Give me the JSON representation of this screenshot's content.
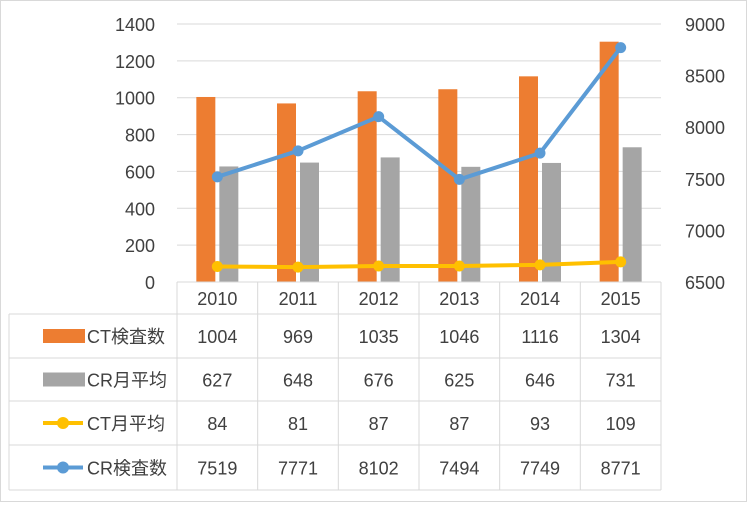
{
  "chart_data": {
    "type": "bar",
    "categories": [
      "2010",
      "2011",
      "2012",
      "2013",
      "2014",
      "2015"
    ],
    "left_axis": {
      "min": 0,
      "max": 1400,
      "step": 200,
      "ticks": [
        "0",
        "200",
        "400",
        "600",
        "800",
        "1000",
        "1200",
        "1400"
      ]
    },
    "right_axis": {
      "min": 6500,
      "max": 9000,
      "step": 500,
      "ticks": [
        "6500",
        "7000",
        "7500",
        "8000",
        "8500",
        "9000"
      ]
    },
    "gridlines": true,
    "legend": "data-table",
    "series": [
      {
        "name": "CT検査数",
        "kind": "bar",
        "axis": "left",
        "color": "#ed7d31",
        "values": [
          1004,
          969,
          1035,
          1046,
          1116,
          1304
        ]
      },
      {
        "name": "CR月平均",
        "kind": "bar",
        "axis": "left",
        "color": "#a5a5a5",
        "values": [
          627,
          648,
          676,
          625,
          646,
          731
        ]
      },
      {
        "name": "CT月平均",
        "kind": "line",
        "axis": "left",
        "color": "#ffc000",
        "values": [
          84,
          81,
          87,
          87,
          93,
          109
        ]
      },
      {
        "name": "CR検査数",
        "kind": "line",
        "axis": "right",
        "color": "#5b9bd5",
        "values": [
          7519,
          7771,
          8102,
          7494,
          7749,
          8771
        ]
      }
    ]
  }
}
